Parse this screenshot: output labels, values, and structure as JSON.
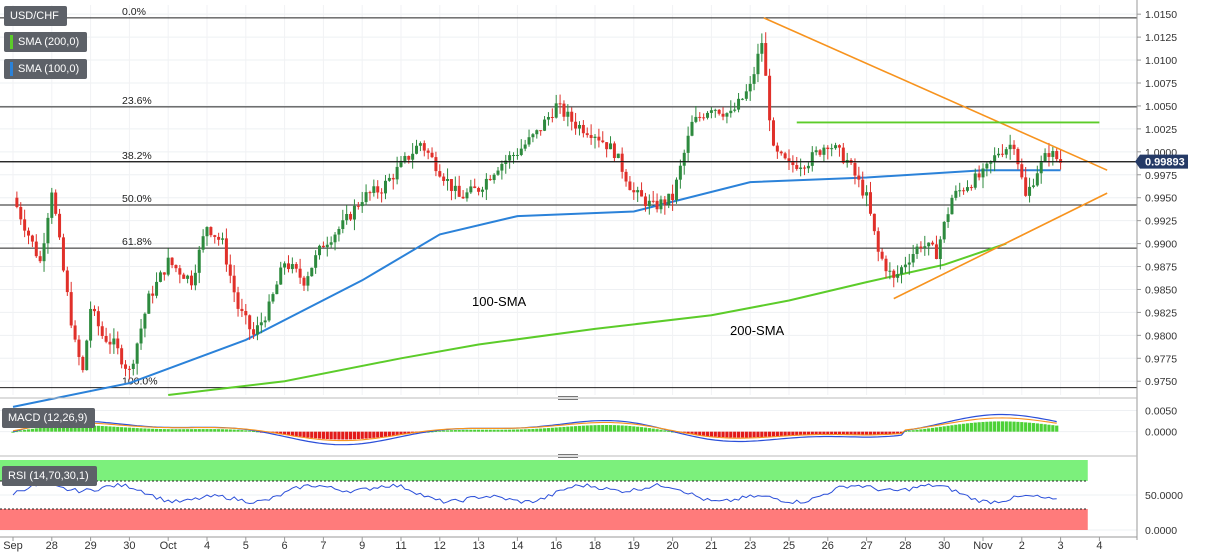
{
  "legend": {
    "symbol": "USD/CHF",
    "sma200": "SMA (200,0)",
    "sma100": "SMA (100,0)",
    "macd": "MACD (12,26,9)",
    "rsi": "RSI (14,70,30,1)"
  },
  "annotations": {
    "sma100": "100-SMA",
    "sma200": "200-SMA"
  },
  "price_tag": "0.99893",
  "colors": {
    "up": "#2d8a3e",
    "down": "#e0302a",
    "sma100": "#2b82d9",
    "sma200": "#5ccc2a",
    "trendline": "#f7931e",
    "resistance": "#5ccc2a",
    "macd_pos": "#4cd137",
    "macd_neg": "#e21b1b",
    "rsi_over": "#7cf07c",
    "rsi_under": "#ff7b7b",
    "tag_bg": "#253a66"
  },
  "chart_data": [
    {
      "type": "candlestick",
      "title": "USD/CHF",
      "y_ticks": [
        "1.0150",
        "1.0125",
        "1.0100",
        "1.0075",
        "1.0050",
        "1.0025",
        "1.0000",
        "0.9975",
        "0.9950",
        "0.9925",
        "0.9900",
        "0.9875",
        "0.9850",
        "0.9825",
        "0.9800",
        "0.9775",
        "0.9750"
      ],
      "ylim": [
        0.9735,
        1.016
      ],
      "x_ticks": [
        "Sep",
        "28",
        "29",
        "30",
        "Oct",
        "4",
        "5",
        "6",
        "7",
        "9",
        "11",
        "12",
        "13",
        "14",
        "16",
        "18",
        "19",
        "20",
        "21",
        "23",
        "25",
        "26",
        "27",
        "28",
        "30",
        "Nov",
        "2",
        "3",
        "4"
      ],
      "fibonacci": [
        {
          "label": "0.0%",
          "value": 1.0146
        },
        {
          "label": "23.6%",
          "value": 1.0049
        },
        {
          "label": "38.2%",
          "value": 0.9989
        },
        {
          "label": "50.0%",
          "value": 0.9942
        },
        {
          "label": "61.8%",
          "value": 0.9895
        },
        {
          "label": "100.0%",
          "value": 0.9743
        }
      ],
      "last_price": 0.99893,
      "series": [
        {
          "name": "100-SMA",
          "values": [
            [
              0,
              0.9722
            ],
            [
              3,
              0.9748
            ],
            [
              6,
              0.9795
            ],
            [
              9,
              0.986
            ],
            [
              11,
              0.991
            ],
            [
              13,
              0.993
            ],
            [
              16,
              0.9935
            ],
            [
              19,
              0.9967
            ],
            [
              22,
              0.9972
            ],
            [
              25,
              0.998
            ],
            [
              27,
              0.998
            ]
          ]
        },
        {
          "name": "200-SMA",
          "values": [
            [
              4,
              0.9735
            ],
            [
              7,
              0.975
            ],
            [
              10,
              0.9775
            ],
            [
              12,
              0.979
            ],
            [
              15,
              0.9807
            ],
            [
              18,
              0.9822
            ],
            [
              20,
              0.9838
            ],
            [
              22,
              0.9858
            ],
            [
              24,
              0.9877
            ],
            [
              25.6,
              0.99
            ]
          ]
        }
      ]
    },
    {
      "type": "bar",
      "title": "MACD (12,26,9)",
      "y_ticks": [
        "0.0050",
        "0.0000"
      ],
      "ylim": [
        -0.0055,
        0.007
      ]
    },
    {
      "type": "line",
      "title": "RSI (14,70,30,1)",
      "y_ticks": [
        "50.0000",
        "0.0000"
      ],
      "ylim": [
        0,
        100
      ],
      "overbought": 70,
      "oversold": 30
    }
  ]
}
